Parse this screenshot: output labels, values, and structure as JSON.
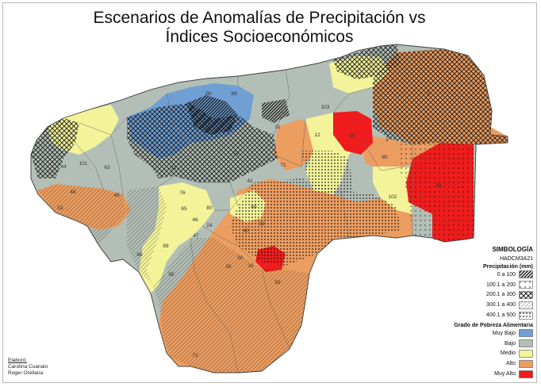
{
  "title": {
    "line1": "Escenarios de Anomalías de Precipitación vs",
    "line2": "Índices Socioeconómicos"
  },
  "legend": {
    "heading": "SIMBOLOGÍA",
    "model": "HADCM3A21",
    "precip_heading": "Precipitación (mm)",
    "precip_classes": [
      {
        "label": "0 a 100",
        "pattern": "dense-diagonal"
      },
      {
        "label": "100.1 a 200",
        "pattern": "sparse-dots"
      },
      {
        "label": "200.1 a 300",
        "pattern": "cross-hatch"
      },
      {
        "label": "300.1 a 400",
        "pattern": "light-diagonal"
      },
      {
        "label": "400.1 a 500",
        "pattern": "dense-dots"
      }
    ],
    "poverty_heading": "Grado de Pobreza Alimentaria",
    "poverty_classes": [
      {
        "label": "Muy Bajo",
        "color": "#6f9fd3"
      },
      {
        "label": "Bajo",
        "color": "#b3bfb6"
      },
      {
        "label": "Medio",
        "color": "#f3f39a"
      },
      {
        "label": "Alto",
        "color": "#ec9d60"
      },
      {
        "label": "Muy Alto",
        "color": "#ee1c1c"
      }
    ]
  },
  "credits": {
    "label": "Elaboró:",
    "authors": [
      "Carolina Cuanalo",
      "Roger Orellana"
    ]
  },
  "municipality_labels": [
    "90",
    "99",
    "31",
    "12",
    "10",
    "2",
    "1",
    "101",
    "44",
    "63",
    "48",
    "53",
    "45",
    "76",
    "80",
    "46",
    "24",
    "69",
    "71",
    "42",
    "102",
    "38",
    "18",
    "66",
    "89",
    "47",
    "56",
    "59",
    "40",
    "33",
    "50",
    "36",
    "16",
    "85",
    "73",
    "3",
    "11",
    "57",
    "65",
    "103"
  ]
}
